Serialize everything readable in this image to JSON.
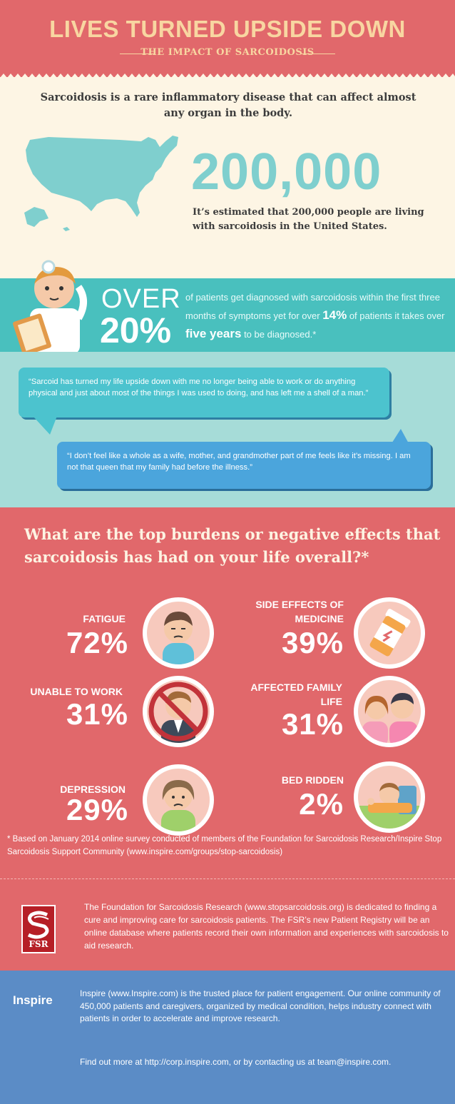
{
  "header": {
    "title": "LIVES TURNED UPSIDE DOWN",
    "subtitle": "THE IMPACT OF SARCOIDOSIS"
  },
  "intro": {
    "text": "Sarcoidosis is a rare inflammatory disease that can affect almost any organ in the body.",
    "stat": "200,000",
    "stat_desc": "It’s estimated that  200,000 people are living with sarcoidosis in the United States."
  },
  "diagnosis": {
    "over_word": "OVER",
    "over_pct": "20%",
    "desc_1": "of patients get diagnosed with sarcoidosis within the first three months of symptoms yet for over ",
    "desc_pct": "14%",
    "desc_2": " of patients it takes over ",
    "desc_years": "five years",
    "desc_3": " to be diagnosed.*"
  },
  "quotes": {
    "q1": "“Sarcoid has turned my life upside down with me no longer being able to work or do anything physical and just about most of the things I was used to doing, and has left me a shell of a man.”",
    "q2": "“I don’t feel like a whole as a wife, mother, and grandmother part of me feels like it’s missing. I am not that queen that my family had before the illness.”"
  },
  "burdens": {
    "question": "What are the top burdens or negative effects that sarcoidosis has had on your life overall?*",
    "items": [
      {
        "label": "FATIGUE",
        "pct": "72%",
        "value": 72,
        "icon": "tired-person-icon"
      },
      {
        "label": "SIDE EFFECTS OF MEDICINE",
        "pct": "39%",
        "value": 39,
        "icon": "pill-bottle-icon"
      },
      {
        "label": "UNABLE TO WORK",
        "pct": "31%",
        "value": 31,
        "icon": "no-work-icon"
      },
      {
        "label": "AFFECTED FAMILY LIFE",
        "pct": "31%",
        "value": 31,
        "icon": "family-icon"
      },
      {
        "label": "DEPRESSION",
        "pct": "29%",
        "value": 29,
        "icon": "sad-person-icon"
      },
      {
        "label": "BED RIDDEN",
        "pct": "2%",
        "value": 2,
        "icon": "bed-icon"
      }
    ],
    "footnote": "* Based on January 2014 online survey conducted of members of the Foundation for Sarcoidosis Research/Inspire Stop Sarcoidosis Support Community (www.inspire.com/groups/stop-sarcoidosis)"
  },
  "fsr": {
    "logo_text": "FSR",
    "text": "The Foundation for Sarcoidosis Research (www.stopsarcoidosis.org) is dedicated to finding a cure and improving care for sarcoidosis patients. The FSR’s new Patient Registry will be an online database where patients record their own information and experiences with sarcoidosis to aid research."
  },
  "inspire": {
    "logo_text": "Inspire",
    "text": "Inspire (www.Inspire.com) is the trusted place for patient engagement. Our online community of 450,000 patients and caregivers, organized by medical condition, helps industry connect with patients in order to accelerate and improve research.",
    "text2": "Find out more at http://corp.inspire.com, or by contacting us at team@inspire.com."
  },
  "colors": {
    "coral": "#e1686b",
    "cream": "#fdf5e4",
    "teal": "#49c0be",
    "light_teal": "#a6dcd8",
    "blue": "#5b8cc6",
    "fsr_red": "#b61f26"
  }
}
